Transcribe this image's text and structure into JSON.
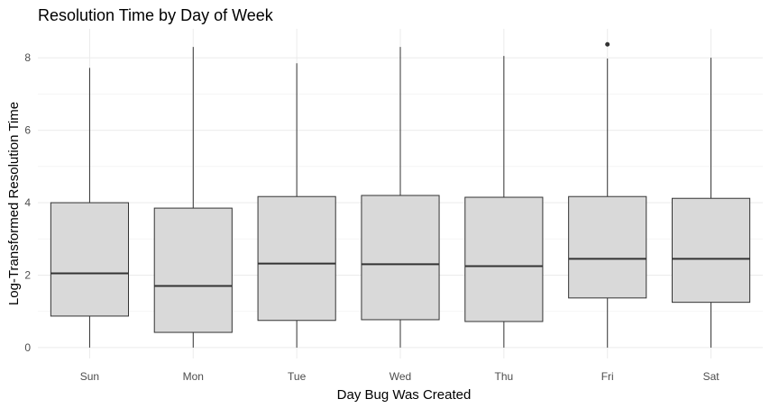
{
  "chart_data": {
    "type": "boxplot",
    "title": "Resolution Time by Day of Week",
    "xlabel": "Day Bug Was Created",
    "ylabel": "Log-Transformed Resolution Time",
    "ylim": [
      -0.3,
      8.8
    ],
    "yticks": [
      0,
      2,
      4,
      6,
      8
    ],
    "grid": true,
    "legend": "none",
    "colors": {
      "box_fill": "#d9d9d9",
      "box_stroke": "#333333",
      "grid": "#ebebeb"
    },
    "categories": [
      "Sun",
      "Mon",
      "Tue",
      "Wed",
      "Thu",
      "Fri",
      "Sat"
    ],
    "boxes": [
      {
        "day": "Sun",
        "min": 0.0,
        "q1": 0.87,
        "median": 2.05,
        "q3": 4.0,
        "max": 7.72,
        "outliers": []
      },
      {
        "day": "Mon",
        "min": 0.0,
        "q1": 0.42,
        "median": 1.7,
        "q3": 3.85,
        "max": 8.3,
        "outliers": []
      },
      {
        "day": "Tue",
        "min": 0.0,
        "q1": 0.75,
        "median": 2.32,
        "q3": 4.17,
        "max": 7.85,
        "outliers": []
      },
      {
        "day": "Wed",
        "min": 0.0,
        "q1": 0.77,
        "median": 2.3,
        "q3": 4.2,
        "max": 8.3,
        "outliers": []
      },
      {
        "day": "Thu",
        "min": 0.0,
        "q1": 0.72,
        "median": 2.25,
        "q3": 4.15,
        "max": 8.05,
        "outliers": []
      },
      {
        "day": "Fri",
        "min": 0.0,
        "q1": 1.37,
        "median": 2.45,
        "q3": 4.17,
        "max": 7.98,
        "outliers": [
          8.37
        ]
      },
      {
        "day": "Sat",
        "min": 0.0,
        "q1": 1.25,
        "median": 2.45,
        "q3": 4.12,
        "max": 8.0,
        "outliers": []
      }
    ]
  }
}
